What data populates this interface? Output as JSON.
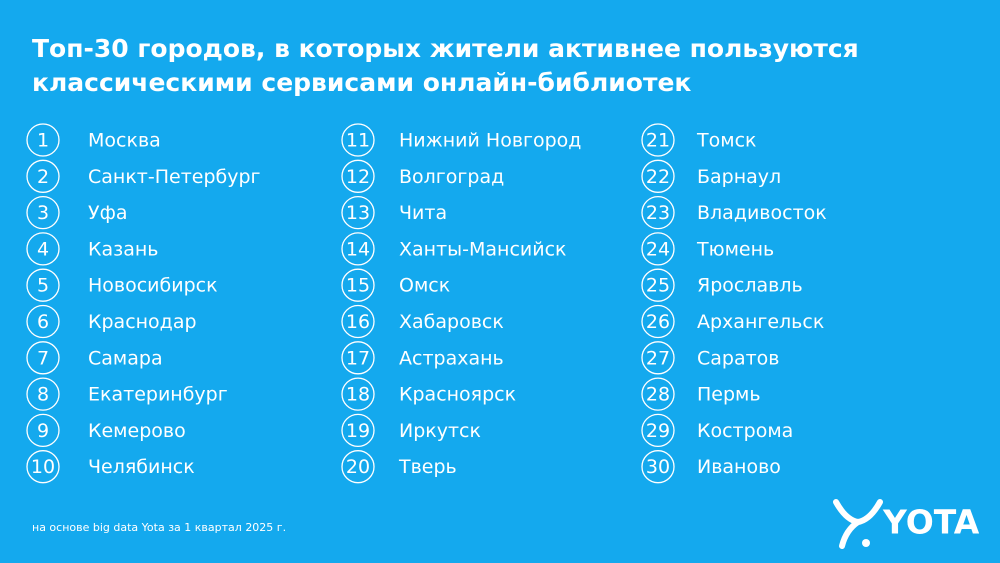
{
  "title": [
    "Топ-30 городов, в которых жители активнее пользуются",
    "классическими сервисами онлайн-библиотек"
  ],
  "columns": [
    [
      {
        "rank": 1,
        "city": "Москва"
      },
      {
        "rank": 2,
        "city": "Санкт-Петербург"
      },
      {
        "rank": 3,
        "city": "Уфа"
      },
      {
        "rank": 4,
        "city": "Казань"
      },
      {
        "rank": 5,
        "city": "Новосибирск"
      },
      {
        "rank": 6,
        "city": "Краснодар"
      },
      {
        "rank": 7,
        "city": "Самара"
      },
      {
        "rank": 8,
        "city": "Екатеринбург"
      },
      {
        "rank": 9,
        "city": "Кемерово"
      },
      {
        "rank": 10,
        "city": "Челябинск"
      }
    ],
    [
      {
        "rank": 11,
        "city": "Нижний Новгород"
      },
      {
        "rank": 12,
        "city": "Волгоград"
      },
      {
        "rank": 13,
        "city": "Чита"
      },
      {
        "rank": 14,
        "city": "Ханты-Мансийск"
      },
      {
        "rank": 15,
        "city": "Омск"
      },
      {
        "rank": 16,
        "city": "Хабаровск"
      },
      {
        "rank": 17,
        "city": "Астрахань"
      },
      {
        "rank": 18,
        "city": "Красноярск"
      },
      {
        "rank": 19,
        "city": "Иркутск"
      },
      {
        "rank": 20,
        "city": "Тверь"
      }
    ],
    [
      {
        "rank": 21,
        "city": "Томск"
      },
      {
        "rank": 22,
        "city": "Барнаул"
      },
      {
        "rank": 23,
        "city": "Владивосток"
      },
      {
        "rank": 24,
        "city": "Тюмень"
      },
      {
        "rank": 25,
        "city": "Ярославль"
      },
      {
        "rank": 26,
        "city": "Архангельск"
      },
      {
        "rank": 27,
        "city": "Саратов"
      },
      {
        "rank": 28,
        "city": "Пермь"
      },
      {
        "rank": 29,
        "city": "Кострома"
      },
      {
        "rank": 30,
        "city": "Иваново"
      }
    ]
  ],
  "footnote": "на основе big data Yota за 1 квартал 2025 г.",
  "logo": "YOTA"
}
